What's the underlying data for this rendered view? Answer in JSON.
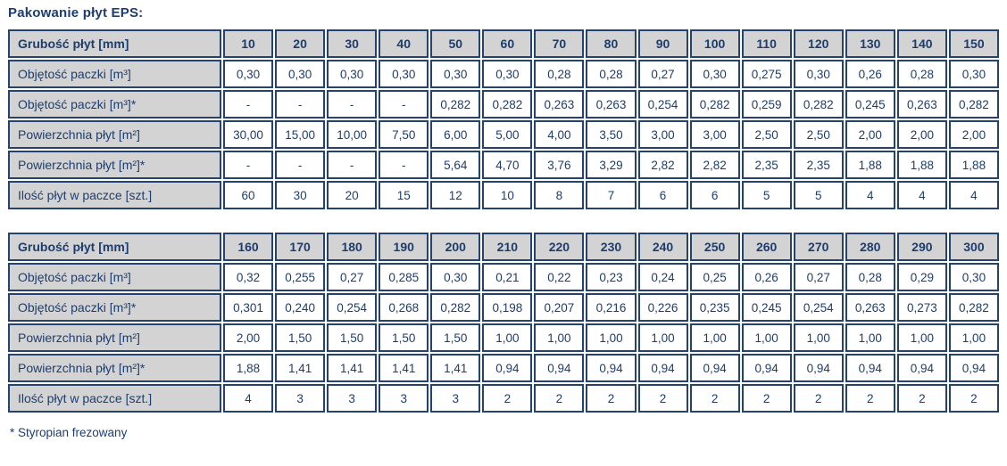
{
  "page": {
    "title": "Pakowanie płyt EPS:",
    "footnote": "* Styropian frezowany"
  },
  "colors": {
    "text_navy": "#1d3d6f",
    "border_navy": "#24436e",
    "header_gray": "#d3d3d3",
    "cell_white": "#ffffff"
  },
  "tables": [
    {
      "header": {
        "label": "Grubość płyt [mm]",
        "values": [
          "10",
          "20",
          "30",
          "40",
          "50",
          "60",
          "70",
          "80",
          "90",
          "100",
          "110",
          "120",
          "130",
          "140",
          "150"
        ]
      },
      "rows": [
        {
          "label": "Objętość paczki [m³]",
          "values": [
            "0,30",
            "0,30",
            "0,30",
            "0,30",
            "0,30",
            "0,30",
            "0,28",
            "0,28",
            "0,27",
            "0,30",
            "0,275",
            "0,30",
            "0,26",
            "0,28",
            "0,30"
          ]
        },
        {
          "label": "Objętość paczki [m³]*",
          "values": [
            "-",
            "-",
            "-",
            "-",
            "0,282",
            "0,282",
            "0,263",
            "0,263",
            "0,254",
            "0,282",
            "0,259",
            "0,282",
            "0,245",
            "0,263",
            "0,282"
          ]
        },
        {
          "label": "Powierzchnia płyt [m²]",
          "values": [
            "30,00",
            "15,00",
            "10,00",
            "7,50",
            "6,00",
            "5,00",
            "4,00",
            "3,50",
            "3,00",
            "3,00",
            "2,50",
            "2,50",
            "2,00",
            "2,00",
            "2,00"
          ]
        },
        {
          "label": "Powierzchnia płyt [m²]*",
          "values": [
            "-",
            "-",
            "-",
            "-",
            "5,64",
            "4,70",
            "3,76",
            "3,29",
            "2,82",
            "2,82",
            "2,35",
            "2,35",
            "1,88",
            "1,88",
            "1,88"
          ]
        },
        {
          "label": "Ilość płyt w paczce [szt.]",
          "values": [
            "60",
            "30",
            "20",
            "15",
            "12",
            "10",
            "8",
            "7",
            "6",
            "6",
            "5",
            "5",
            "4",
            "4",
            "4"
          ]
        }
      ]
    },
    {
      "header": {
        "label": "Grubość płyt [mm]",
        "values": [
          "160",
          "170",
          "180",
          "190",
          "200",
          "210",
          "220",
          "230",
          "240",
          "250",
          "260",
          "270",
          "280",
          "290",
          "300"
        ]
      },
      "rows": [
        {
          "label": "Objętość paczki [m³]",
          "values": [
            "0,32",
            "0,255",
            "0,27",
            "0,285",
            "0,30",
            "0,21",
            "0,22",
            "0,23",
            "0,24",
            "0,25",
            "0,26",
            "0,27",
            "0,28",
            "0,29",
            "0,30"
          ]
        },
        {
          "label": "Objętość paczki [m³]*",
          "values": [
            "0,301",
            "0,240",
            "0,254",
            "0,268",
            "0,282",
            "0,198",
            "0,207",
            "0,216",
            "0,226",
            "0,235",
            "0,245",
            "0,254",
            "0,263",
            "0,273",
            "0,282"
          ]
        },
        {
          "label": "Powierzchnia płyt [m²]",
          "values": [
            "2,00",
            "1,50",
            "1,50",
            "1,50",
            "1,50",
            "1,00",
            "1,00",
            "1,00",
            "1,00",
            "1,00",
            "1,00",
            "1,00",
            "1,00",
            "1,00",
            "1,00"
          ]
        },
        {
          "label": "Powierzchnia płyt [m²]*",
          "values": [
            "1,88",
            "1,41",
            "1,41",
            "1,41",
            "1,41",
            "0,94",
            "0,94",
            "0,94",
            "0,94",
            "0,94",
            "0,94",
            "0,94",
            "0,94",
            "0,94",
            "0,94"
          ]
        },
        {
          "label": "Ilość płyt w paczce [szt.]",
          "values": [
            "4",
            "3",
            "3",
            "3",
            "3",
            "2",
            "2",
            "2",
            "2",
            "2",
            "2",
            "2",
            "2",
            "2",
            "2"
          ]
        }
      ]
    }
  ]
}
